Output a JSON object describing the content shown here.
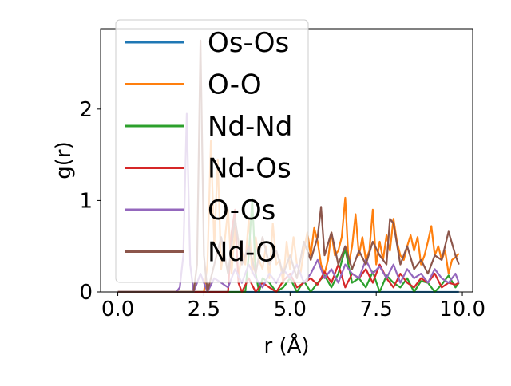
{
  "chart_data": {
    "type": "line",
    "title": "",
    "xlabel": "r (Å)",
    "ylabel": "g(r)",
    "xlim": [
      -0.5,
      10.3
    ],
    "ylim": [
      0,
      2.88
    ],
    "xticks": [
      0.0,
      2.5,
      5.0,
      7.5,
      10.0
    ],
    "xtick_labels": [
      "0.0",
      "2.5",
      "5.0",
      "7.5",
      "10.0"
    ],
    "yticks": [
      0,
      1,
      2
    ],
    "ytick_labels": [
      "0",
      "1",
      "2"
    ],
    "grid": false,
    "legend": {
      "position": "upper-left",
      "frame": true
    },
    "series": [
      {
        "name": "Os-Os",
        "color": "#1f77b4",
        "x": [
          0.0,
          1.0,
          2.0,
          3.0,
          3.5,
          4.0,
          4.5,
          5.0,
          5.5,
          6.0,
          6.5,
          7.0,
          7.5,
          8.0,
          8.5,
          9.0,
          9.5,
          9.9
        ],
        "y": [
          0,
          0,
          0,
          0,
          0,
          0,
          0,
          0,
          0,
          0,
          0,
          0,
          0,
          0,
          0,
          0,
          0,
          0
        ]
      },
      {
        "name": "O-O",
        "color": "#ff7f0e",
        "x": [
          0.0,
          1.0,
          2.0,
          2.4,
          2.5,
          2.6,
          2.7,
          2.8,
          2.9,
          3.0,
          3.1,
          3.2,
          3.3,
          3.4,
          3.5,
          3.6,
          3.7,
          3.8,
          3.9,
          4.0,
          4.1,
          4.2,
          4.3,
          4.4,
          4.5,
          4.6,
          4.7,
          4.8,
          4.9,
          5.0,
          5.1,
          5.2,
          5.3,
          5.4,
          5.5,
          5.6,
          5.7,
          5.8,
          5.9,
          6.0,
          6.1,
          6.2,
          6.3,
          6.4,
          6.5,
          6.6,
          6.7,
          6.8,
          6.9,
          7.0,
          7.1,
          7.2,
          7.3,
          7.4,
          7.5,
          7.6,
          7.7,
          7.8,
          7.9,
          8.0,
          8.1,
          8.2,
          8.3,
          8.4,
          8.5,
          8.6,
          8.7,
          8.8,
          8.9,
          9.0,
          9.1,
          9.2,
          9.3,
          9.4,
          9.5,
          9.6,
          9.7,
          9.8,
          9.9
        ],
        "y": [
          0,
          0,
          0,
          0,
          0.0,
          0.3,
          1.65,
          0.5,
          1.45,
          0.25,
          0.55,
          0.9,
          0.2,
          0.7,
          0.15,
          0.45,
          0.3,
          0.8,
          0.2,
          0.6,
          0.35,
          0.25,
          0.5,
          0.15,
          0.75,
          0.3,
          0.35,
          0.1,
          0.55,
          0.25,
          0.6,
          0.3,
          0.2,
          0.45,
          0.65,
          0.4,
          0.7,
          0.55,
          0.3,
          0.2,
          0.35,
          0.65,
          0.4,
          0.45,
          0.6,
          1.03,
          0.3,
          0.5,
          0.85,
          0.4,
          0.6,
          0.35,
          0.45,
          0.9,
          0.3,
          0.55,
          0.35,
          0.62,
          0.45,
          0.8,
          0.55,
          0.4,
          0.35,
          0.5,
          0.62,
          0.45,
          0.6,
          0.3,
          0.4,
          0.55,
          0.72,
          0.4,
          0.5,
          0.35,
          0.45,
          0.2,
          0.35,
          0.38,
          0.42
        ]
      },
      {
        "name": "Nd-Nd",
        "color": "#2ca02c",
        "x": [
          0.0,
          1.0,
          2.0,
          3.0,
          3.5,
          3.7,
          3.8,
          3.9,
          4.0,
          4.1,
          4.2,
          4.4,
          4.6,
          4.8,
          5.0,
          5.2,
          5.4,
          5.6,
          5.8,
          6.0,
          6.2,
          6.4,
          6.6,
          6.8,
          7.0,
          7.2,
          7.4,
          7.6,
          7.8,
          8.0,
          8.2,
          8.4,
          8.6,
          8.8,
          9.0,
          9.2,
          9.4,
          9.6,
          9.8,
          9.9
        ],
        "y": [
          0,
          0,
          0,
          0,
          0,
          0.0,
          0.4,
          1.02,
          0.2,
          0.0,
          0.15,
          0.1,
          0.0,
          0.05,
          0.15,
          0.0,
          0.12,
          0.0,
          0.1,
          0.18,
          0.05,
          0.2,
          0.47,
          0.1,
          0.15,
          0.05,
          0.22,
          0.0,
          0.18,
          0.1,
          0.05,
          0.15,
          0.0,
          0.12,
          0.1,
          0.0,
          0.08,
          0.18,
          0.05,
          0.1
        ]
      },
      {
        "name": "Nd-Os",
        "color": "#d62728",
        "x": [
          0.0,
          1.0,
          2.0,
          3.0,
          3.2,
          3.3,
          3.4,
          3.5,
          3.6,
          3.8,
          4.0,
          4.2,
          4.4,
          4.6,
          4.8,
          5.0,
          5.2,
          5.4,
          5.6,
          5.8,
          6.0,
          6.2,
          6.4,
          6.6,
          6.8,
          7.0,
          7.2,
          7.4,
          7.6,
          7.8,
          8.0,
          8.2,
          8.4,
          8.6,
          8.8,
          9.0,
          9.2,
          9.4,
          9.6,
          9.8,
          9.9
        ],
        "y": [
          0,
          0,
          0,
          0,
          0.0,
          0.65,
          0.9,
          0.1,
          0.0,
          0.15,
          0.0,
          0.1,
          0.05,
          0.0,
          0.12,
          0.2,
          0.05,
          0.1,
          0.15,
          0.08,
          0.22,
          0.1,
          0.3,
          0.05,
          0.2,
          0.15,
          0.25,
          0.1,
          0.3,
          0.15,
          0.05,
          0.2,
          0.1,
          0.05,
          0.15,
          0.1,
          0.2,
          0.05,
          0.1,
          0.08,
          0.1
        ]
      },
      {
        "name": "O-Os",
        "color": "#9467bd",
        "x": [
          0.0,
          1.0,
          1.7,
          1.8,
          1.9,
          2.0,
          2.1,
          2.2,
          2.3,
          2.4,
          2.6,
          2.8,
          3.0,
          3.2,
          3.4,
          3.6,
          3.8,
          4.0,
          4.2,
          4.4,
          4.6,
          4.8,
          5.0,
          5.2,
          5.4,
          5.6,
          5.8,
          6.0,
          6.2,
          6.4,
          6.6,
          6.8,
          7.0,
          7.2,
          7.4,
          7.6,
          7.8,
          8.0,
          8.2,
          8.4,
          8.6,
          8.8,
          9.0,
          9.2,
          9.4,
          9.6,
          9.8,
          9.9
        ],
        "y": [
          0,
          0,
          0,
          0.05,
          0.4,
          1.95,
          0.3,
          0.0,
          0.1,
          0.2,
          0.0,
          0.15,
          0.1,
          0.05,
          0.25,
          0.1,
          0.3,
          0.15,
          0.05,
          0.2,
          0.1,
          0.25,
          0.15,
          0.3,
          0.1,
          0.2,
          0.35,
          0.15,
          0.25,
          0.1,
          0.3,
          0.2,
          0.15,
          0.35,
          0.2,
          0.28,
          0.15,
          0.3,
          0.1,
          0.25,
          0.15,
          0.2,
          0.1,
          0.25,
          0.15,
          0.1,
          0.2,
          0.1
        ]
      },
      {
        "name": "Nd-O",
        "color": "#8c564b",
        "x": [
          0.0,
          1.0,
          2.0,
          2.2,
          2.3,
          2.4,
          2.5,
          2.6,
          2.8,
          3.0,
          3.2,
          3.4,
          3.6,
          3.8,
          4.0,
          4.2,
          4.4,
          4.6,
          4.8,
          5.0,
          5.2,
          5.4,
          5.6,
          5.8,
          5.9,
          6.0,
          6.2,
          6.4,
          6.6,
          6.8,
          7.0,
          7.2,
          7.4,
          7.6,
          7.8,
          7.9,
          8.0,
          8.2,
          8.4,
          8.6,
          8.8,
          9.0,
          9.2,
          9.4,
          9.6,
          9.8,
          9.9
        ],
        "y": [
          0,
          0,
          0,
          0,
          0.3,
          2.75,
          0.4,
          0.0,
          0.3,
          0.6,
          0.2,
          0.8,
          0.3,
          0.5,
          0.2,
          0.6,
          0.3,
          0.45,
          0.2,
          0.4,
          0.15,
          0.55,
          0.35,
          0.6,
          0.93,
          0.4,
          0.65,
          0.3,
          0.5,
          0.25,
          0.45,
          0.3,
          0.55,
          0.4,
          0.3,
          0.8,
          0.75,
          0.3,
          0.5,
          0.25,
          0.35,
          0.2,
          0.4,
          0.35,
          0.66,
          0.4,
          0.3
        ]
      }
    ]
  }
}
